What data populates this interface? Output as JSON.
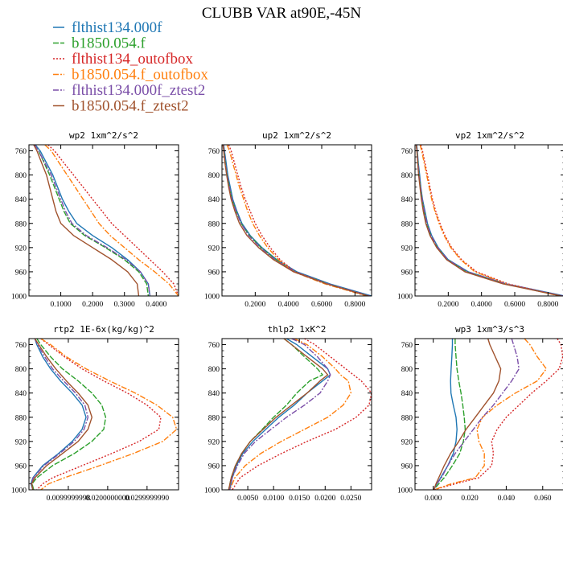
{
  "title": "CLUBB VAR at90E,-45N",
  "legend": [
    {
      "name": "flthist134.000f",
      "color": "#1f77b4",
      "dash": ""
    },
    {
      "name": "b1850.054.f",
      "color": "#2ca02c",
      "dash": "7,2"
    },
    {
      "name": "flthist134_outofbox",
      "color": "#d62728",
      "dash": "2,2"
    },
    {
      "name": "b1850.054.f_outofbox",
      "color": "#ff7f0e",
      "dash": "7,2,2,2"
    },
    {
      "name": "flthist134.000f_ztest2",
      "color": "#7b4fa8",
      "dash": "7,2,2,2"
    },
    {
      "name": "b1850.054.f_ztest2",
      "color": "#a0522d",
      "dash": ""
    }
  ],
  "chart_data": [
    {
      "type": "line",
      "title": "wp2   1xm^2/s^2",
      "xlim": [
        0,
        0.47
      ],
      "ylim": [
        750,
        1000
      ],
      "yticks": [
        760,
        800,
        840,
        880,
        920,
        960,
        1000
      ],
      "xticks": [
        0.1,
        0.2,
        0.3,
        0.4
      ],
      "xticklabels": [
        "0.1000",
        "0.2000",
        "0.3000",
        "0.4000"
      ],
      "y": [
        750,
        760,
        780,
        800,
        820,
        840,
        860,
        880,
        900,
        920,
        940,
        960,
        980,
        1000
      ],
      "series": [
        {
          "name": "flthist134.000f",
          "x": [
            0.02,
            0.035,
            0.055,
            0.075,
            0.09,
            0.105,
            0.125,
            0.15,
            0.2,
            0.26,
            0.31,
            0.35,
            0.375,
            0.38
          ]
        },
        {
          "name": "b1850.054.f",
          "x": [
            0.018,
            0.03,
            0.048,
            0.065,
            0.08,
            0.095,
            0.11,
            0.13,
            0.175,
            0.24,
            0.3,
            0.345,
            0.37,
            0.375
          ]
        },
        {
          "name": "flthist134_outofbox",
          "x": [
            0.06,
            0.08,
            0.11,
            0.14,
            0.17,
            0.2,
            0.23,
            0.26,
            0.3,
            0.34,
            0.38,
            0.42,
            0.455,
            0.47
          ]
        },
        {
          "name": "b1850.054.f_outofbox",
          "x": [
            0.05,
            0.07,
            0.095,
            0.12,
            0.145,
            0.17,
            0.195,
            0.22,
            0.255,
            0.3,
            0.345,
            0.395,
            0.44,
            0.47
          ]
        },
        {
          "name": "flthist134.000f_ztest2",
          "x": [
            0.018,
            0.03,
            0.05,
            0.07,
            0.085,
            0.1,
            0.115,
            0.135,
            0.18,
            0.245,
            0.305,
            0.35,
            0.375,
            0.38
          ]
        },
        {
          "name": "b1850.054.f_ztest2",
          "x": [
            0.015,
            0.025,
            0.04,
            0.055,
            0.065,
            0.075,
            0.085,
            0.1,
            0.14,
            0.2,
            0.26,
            0.31,
            0.34,
            0.345
          ]
        }
      ]
    },
    {
      "type": "line",
      "title": "up2   1xm^2/s^2",
      "xlim": [
        0,
        0.9
      ],
      "ylim": [
        750,
        1000
      ],
      "yticks": [
        760,
        800,
        840,
        880,
        920,
        960,
        1000
      ],
      "xticks": [
        0.2,
        0.4,
        0.6,
        0.8
      ],
      "xticklabels": [
        "0.2000",
        "0.4000",
        "0.6000",
        "0.8000"
      ],
      "y": [
        750,
        760,
        780,
        800,
        820,
        840,
        860,
        880,
        900,
        920,
        940,
        960,
        980,
        1000
      ],
      "series": [
        {
          "name": "flthist134.000f",
          "x": [
            0.01,
            0.015,
            0.025,
            0.035,
            0.05,
            0.065,
            0.09,
            0.12,
            0.17,
            0.24,
            0.33,
            0.45,
            0.65,
            0.9
          ]
        },
        {
          "name": "b1850.054.f",
          "x": [
            0.008,
            0.012,
            0.02,
            0.03,
            0.045,
            0.06,
            0.085,
            0.115,
            0.165,
            0.235,
            0.325,
            0.44,
            0.64,
            0.88
          ]
        },
        {
          "name": "flthist134_outofbox",
          "x": [
            0.04,
            0.055,
            0.075,
            0.095,
            0.115,
            0.14,
            0.17,
            0.2,
            0.24,
            0.29,
            0.35,
            0.44,
            0.63,
            0.88
          ]
        },
        {
          "name": "b1850.054.f_outofbox",
          "x": [
            0.03,
            0.045,
            0.065,
            0.085,
            0.105,
            0.13,
            0.155,
            0.185,
            0.225,
            0.275,
            0.34,
            0.43,
            0.62,
            0.87
          ]
        },
        {
          "name": "flthist134.000f_ztest2",
          "x": [
            0.008,
            0.012,
            0.02,
            0.03,
            0.045,
            0.06,
            0.085,
            0.115,
            0.16,
            0.23,
            0.32,
            0.44,
            0.64,
            0.89
          ]
        },
        {
          "name": "b1850.054.f_ztest2",
          "x": [
            0.006,
            0.01,
            0.018,
            0.028,
            0.04,
            0.055,
            0.078,
            0.105,
            0.15,
            0.22,
            0.31,
            0.43,
            0.63,
            0.88
          ]
        }
      ]
    },
    {
      "type": "line",
      "title": "vp2   1xm^2/s^2",
      "xlim": [
        0,
        0.9
      ],
      "ylim": [
        750,
        1000
      ],
      "yticks": [
        760,
        800,
        840,
        880,
        920,
        960,
        1000
      ],
      "xticks": [
        0.2,
        0.4,
        0.6,
        0.8
      ],
      "xticklabels": [
        "0.2000",
        "0.4000",
        "0.6000",
        "0.8000"
      ],
      "y": [
        750,
        760,
        780,
        800,
        820,
        840,
        860,
        880,
        900,
        920,
        940,
        960,
        980,
        1000
      ],
      "series": [
        {
          "name": "flthist134.000f",
          "x": [
            0.01,
            0.014,
            0.02,
            0.028,
            0.035,
            0.045,
            0.06,
            0.075,
            0.1,
            0.14,
            0.2,
            0.32,
            0.55,
            0.9
          ]
        },
        {
          "name": "b1850.054.f",
          "x": [
            0.008,
            0.012,
            0.018,
            0.025,
            0.032,
            0.042,
            0.055,
            0.07,
            0.095,
            0.135,
            0.195,
            0.31,
            0.54,
            0.88
          ]
        },
        {
          "name": "flthist134_outofbox",
          "x": [
            0.035,
            0.045,
            0.06,
            0.075,
            0.09,
            0.105,
            0.125,
            0.15,
            0.18,
            0.22,
            0.28,
            0.37,
            0.56,
            0.88
          ]
        },
        {
          "name": "b1850.054.f_outofbox",
          "x": [
            0.03,
            0.04,
            0.055,
            0.07,
            0.085,
            0.1,
            0.12,
            0.145,
            0.175,
            0.215,
            0.275,
            0.36,
            0.55,
            0.87
          ]
        },
        {
          "name": "flthist134.000f_ztest2",
          "x": [
            0.008,
            0.012,
            0.018,
            0.025,
            0.033,
            0.043,
            0.057,
            0.072,
            0.097,
            0.137,
            0.197,
            0.315,
            0.545,
            0.89
          ]
        },
        {
          "name": "b1850.054.f_ztest2",
          "x": [
            0.007,
            0.011,
            0.016,
            0.022,
            0.03,
            0.038,
            0.05,
            0.065,
            0.09,
            0.13,
            0.19,
            0.3,
            0.53,
            0.88
          ]
        }
      ]
    },
    {
      "type": "line",
      "title": "rtp2   1E-6x(kg/kg)^2",
      "xlim": [
        0,
        0.038
      ],
      "ylim": [
        750,
        1000
      ],
      "yticks": [
        760,
        800,
        840,
        880,
        920,
        960,
        1000
      ],
      "xticks": [
        0.01,
        0.02,
        0.03
      ],
      "xticklabels": [
        "0.0099999998",
        "0.0200000000",
        "0.0299999990"
      ],
      "y": [
        750,
        760,
        780,
        800,
        820,
        840,
        860,
        880,
        900,
        920,
        940,
        960,
        980,
        990,
        1000
      ],
      "series": [
        {
          "name": "flthist134.000f",
          "x": [
            0.0015,
            0.002,
            0.0035,
            0.0055,
            0.008,
            0.011,
            0.0135,
            0.0145,
            0.0135,
            0.011,
            0.0075,
            0.0035,
            0.001,
            0.0005,
            0.001
          ]
        },
        {
          "name": "b1850.054.f",
          "x": [
            0.002,
            0.003,
            0.0055,
            0.0085,
            0.0125,
            0.016,
            0.0185,
            0.0195,
            0.019,
            0.016,
            0.0115,
            0.006,
            0.002,
            0.0008,
            0.0012
          ]
        },
        {
          "name": "flthist134_outofbox",
          "x": [
            0.003,
            0.005,
            0.009,
            0.0135,
            0.019,
            0.025,
            0.03,
            0.0335,
            0.033,
            0.028,
            0.021,
            0.0135,
            0.006,
            0.0035,
            0.002
          ]
        },
        {
          "name": "b1850.054.f_outofbox",
          "x": [
            0.003,
            0.0055,
            0.0095,
            0.0145,
            0.0205,
            0.027,
            0.0325,
            0.0365,
            0.0375,
            0.034,
            0.0265,
            0.018,
            0.009,
            0.005,
            0.003
          ]
        },
        {
          "name": "flthist134.000f_ztest2",
          "x": [
            0.0015,
            0.0022,
            0.004,
            0.006,
            0.0088,
            0.0118,
            0.0142,
            0.015,
            0.014,
            0.0115,
            0.0078,
            0.0038,
            0.0011,
            0.0006,
            0.001
          ]
        },
        {
          "name": "b1850.054.f_ztest2",
          "x": [
            0.0015,
            0.0025,
            0.0045,
            0.0068,
            0.0095,
            0.0125,
            0.015,
            0.016,
            0.015,
            0.0125,
            0.0085,
            0.0045,
            0.0015,
            0.0007,
            0.001
          ]
        }
      ]
    },
    {
      "type": "line",
      "title": "thlp2   1xK^2",
      "xlim": [
        0,
        0.029
      ],
      "ylim": [
        750,
        1000
      ],
      "yticks": [
        760,
        800,
        840,
        880,
        920,
        960,
        1000
      ],
      "xticks": [
        0.005,
        0.01,
        0.015,
        0.02,
        0.025
      ],
      "xticklabels": [
        "0.0050",
        "0.0100",
        "0.0150",
        "0.0200",
        "0.0250"
      ],
      "y": [
        750,
        760,
        780,
        800,
        810,
        820,
        840,
        860,
        880,
        900,
        920,
        940,
        960,
        980,
        1000
      ],
      "series": [
        {
          "name": "flthist134.000f",
          "x": [
            0.0125,
            0.0145,
            0.0175,
            0.0205,
            0.021,
            0.0195,
            0.0165,
            0.014,
            0.011,
            0.0085,
            0.006,
            0.004,
            0.0028,
            0.002,
            0.0015
          ]
        },
        {
          "name": "b1850.054.f",
          "x": [
            0.012,
            0.0135,
            0.016,
            0.0185,
            0.0195,
            0.017,
            0.0145,
            0.0125,
            0.01,
            0.0078,
            0.0055,
            0.0038,
            0.0026,
            0.0018,
            0.0013
          ]
        },
        {
          "name": "flthist134_outofbox",
          "x": [
            0.016,
            0.018,
            0.021,
            0.024,
            0.0255,
            0.027,
            0.029,
            0.0285,
            0.026,
            0.022,
            0.0165,
            0.0115,
            0.007,
            0.0035,
            0.002
          ]
        },
        {
          "name": "b1850.054.f_outofbox",
          "x": [
            0.014,
            0.0165,
            0.0195,
            0.022,
            0.023,
            0.0245,
            0.025,
            0.0235,
            0.0205,
            0.016,
            0.0115,
            0.0075,
            0.0045,
            0.0025,
            0.0015
          ]
        },
        {
          "name": "flthist134.000f_ztest2",
          "x": [
            0.0135,
            0.016,
            0.0185,
            0.0205,
            0.021,
            0.0205,
            0.019,
            0.016,
            0.0125,
            0.0095,
            0.0065,
            0.0043,
            0.003,
            0.002,
            0.0015
          ]
        },
        {
          "name": "b1850.054.f_ztest2",
          "x": [
            0.012,
            0.0135,
            0.0165,
            0.0195,
            0.0205,
            0.019,
            0.0165,
            0.0135,
            0.0105,
            0.008,
            0.0055,
            0.0038,
            0.0026,
            0.0018,
            0.0013
          ]
        }
      ]
    },
    {
      "type": "line",
      "title": "wp3   1xm^3/s^3",
      "xlim": [
        -0.01,
        0.072
      ],
      "ylim": [
        750,
        1000
      ],
      "yticks": [
        760,
        800,
        840,
        880,
        920,
        960,
        1000
      ],
      "xticks": [
        0,
        0.02,
        0.04,
        0.06
      ],
      "xticklabels": [
        "0.000",
        "0.020",
        "0.040",
        "0.060"
      ],
      "y": [
        750,
        760,
        780,
        800,
        820,
        840,
        860,
        880,
        900,
        920,
        940,
        960,
        980,
        990,
        1000
      ],
      "series": [
        {
          "name": "flthist134.000f",
          "x": [
            0.0105,
            0.0105,
            0.0102,
            0.0098,
            0.0095,
            0.0097,
            0.011,
            0.0125,
            0.013,
            0.0125,
            0.011,
            0.008,
            0.004,
            0.002,
            0.0003
          ]
        },
        {
          "name": "b1850.054.f",
          "x": [
            0.012,
            0.012,
            0.0125,
            0.013,
            0.014,
            0.0152,
            0.0162,
            0.017,
            0.0175,
            0.0165,
            0.0145,
            0.0105,
            0.006,
            0.003,
            0.0003
          ]
        },
        {
          "name": "flthist134_outofbox",
          "x": [
            0.068,
            0.07,
            0.071,
            0.069,
            0.062,
            0.054,
            0.047,
            0.04,
            0.035,
            0.032,
            0.033,
            0.032,
            0.025,
            0.012,
            0.0003
          ]
        },
        {
          "name": "b1850.054.f_outofbox",
          "x": [
            0.05,
            0.053,
            0.057,
            0.062,
            0.057,
            0.045,
            0.035,
            0.027,
            0.024,
            0.025,
            0.028,
            0.028,
            0.023,
            0.01,
            0.0003
          ]
        },
        {
          "name": "flthist134.000f_ztest2",
          "x": [
            0.043,
            0.044,
            0.046,
            0.047,
            0.043,
            0.038,
            0.033,
            0.027,
            0.022,
            0.017,
            0.012,
            0.008,
            0.0045,
            0.002,
            0.0003
          ]
        },
        {
          "name": "b1850.054.f_ztest2",
          "x": [
            0.03,
            0.031,
            0.034,
            0.037,
            0.036,
            0.033,
            0.028,
            0.023,
            0.018,
            0.014,
            0.0095,
            0.006,
            0.003,
            0.0015,
            0.0003
          ]
        }
      ]
    }
  ]
}
